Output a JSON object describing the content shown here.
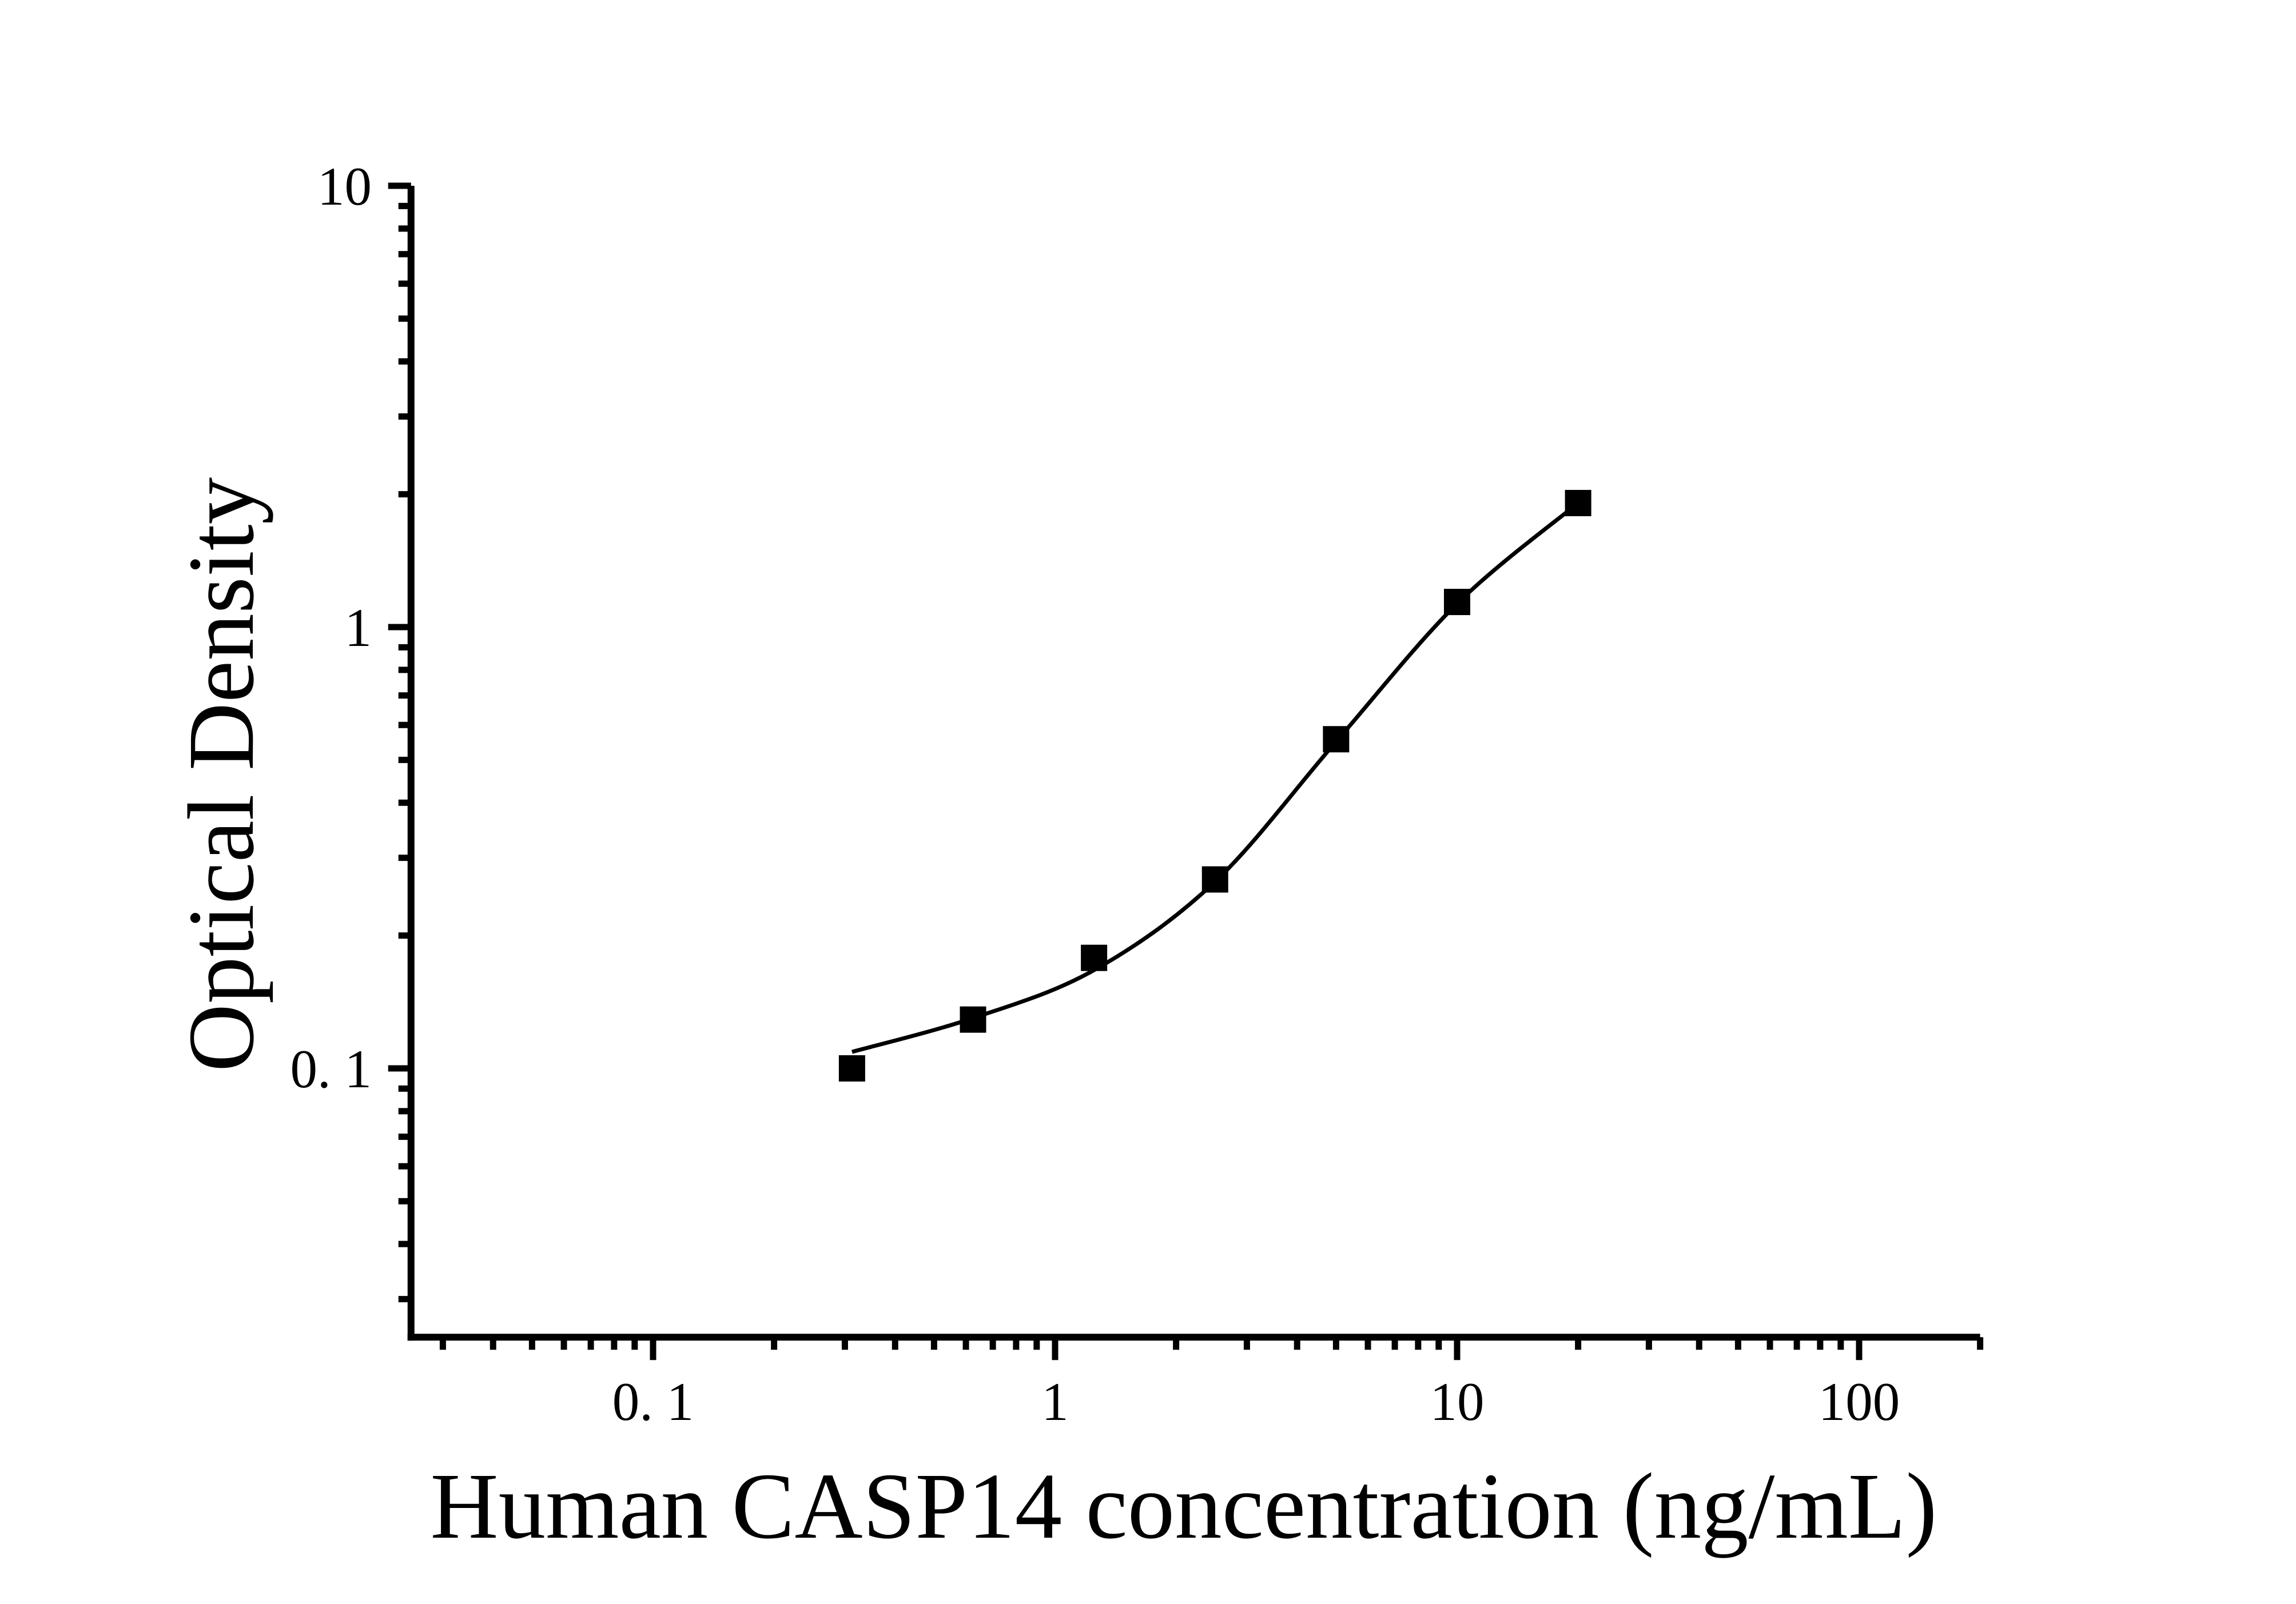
{
  "figure": {
    "background": "#ffffff",
    "foreground": "#000000"
  },
  "chart_data": {
    "type": "scatter",
    "title": "",
    "xlabel": "Human CASP14 concentration (ng/mL)",
    "ylabel": "Optical Density",
    "xscale": "log",
    "yscale": "log",
    "xlim": [
      0.025,
      200
    ],
    "ylim": [
      0.0246,
      10
    ],
    "grid": false,
    "legend": null,
    "marker": "filled-square",
    "marker_color": "#000000",
    "line_color": "#000000",
    "x": [
      0.3125,
      0.625,
      1.25,
      2.5,
      5,
      10,
      20
    ],
    "y": [
      0.1,
      0.129,
      0.178,
      0.268,
      0.557,
      1.14,
      1.91
    ],
    "curve": [
      [
        0.3125,
        0.109
      ],
      [
        0.625,
        0.13
      ],
      [
        1.25,
        0.167
      ],
      [
        2.5,
        0.265
      ],
      [
        5,
        0.55
      ],
      [
        10,
        1.13
      ],
      [
        20,
        1.91
      ]
    ],
    "x_major_ticks": [
      {
        "value": 0.1,
        "label": "0. 1"
      },
      {
        "value": 1,
        "label": "1"
      },
      {
        "value": 10,
        "label": "10"
      },
      {
        "value": 100,
        "label": "100"
      }
    ],
    "y_major_ticks": [
      {
        "value": 10,
        "label": "10"
      },
      {
        "value": 1,
        "label": "1"
      },
      {
        "value": 0.1,
        "label": "0. 1"
      }
    ],
    "x_minor_tick_range": [
      0.03,
      200
    ],
    "y_minor_tick_range": [
      0.03,
      10
    ]
  }
}
